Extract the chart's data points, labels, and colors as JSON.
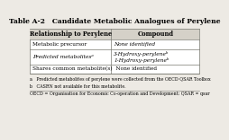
{
  "title": "Table A-2   Candidate Metabolic Analogues of Perylene",
  "col_headers": [
    "Relationship to Perylene",
    "Compound"
  ],
  "rows": [
    [
      "Metabolic precursor",
      "None identified"
    ],
    [
      "Predicted metabolitesᵃ",
      "3-Hydroxy-peryleneᵇ\n1-Hydroxy-peryleneᵇ"
    ],
    [
      "Shares common metabolite(s)",
      "None identified"
    ]
  ],
  "footnotes": [
    "a   Predicted metabolites of perylene were collected from the OECD QSAR Toolbox",
    "b   CASRN not available for this metabolite.",
    "OECD = Organisation for Economic Co-operation and Development; QSAR = qsar"
  ],
  "bg_color": "#edeae4",
  "table_bg": "#ffffff",
  "header_bg": "#d5d1c8",
  "border_color": "#7a7a72",
  "title_fontsize": 5.5,
  "header_fontsize": 4.8,
  "cell_fontsize": 4.2,
  "footnote_fontsize": 3.4
}
